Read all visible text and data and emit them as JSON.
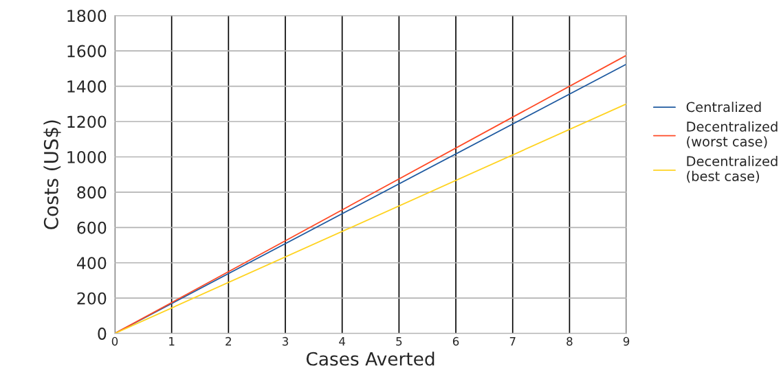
{
  "chart_data": {
    "type": "line",
    "xlabel": "Cases Averted",
    "ylabel": "Costs (US$)",
    "x": [
      0,
      9
    ],
    "series": [
      {
        "name": "Centralized",
        "color": "#1f5aa0",
        "values": [
          0,
          1525
        ]
      },
      {
        "name": "Decentralized\n(worst case)",
        "color": "#ff4a26",
        "values": [
          0,
          1575
        ]
      },
      {
        "name": "Decentralized\n(best case)",
        "color": "#ffd320",
        "values": [
          0,
          1300
        ]
      }
    ],
    "xlim": [
      0,
      9
    ],
    "xticks": [
      0,
      1,
      2,
      3,
      4,
      5,
      6,
      7,
      8,
      9
    ],
    "ylim": [
      0,
      1800
    ],
    "yticks": [
      0,
      200,
      400,
      600,
      800,
      1000,
      1200,
      1400,
      1600,
      1800
    ],
    "grid": true,
    "legend": "right",
    "marker": "none",
    "line_style": "solid"
  }
}
